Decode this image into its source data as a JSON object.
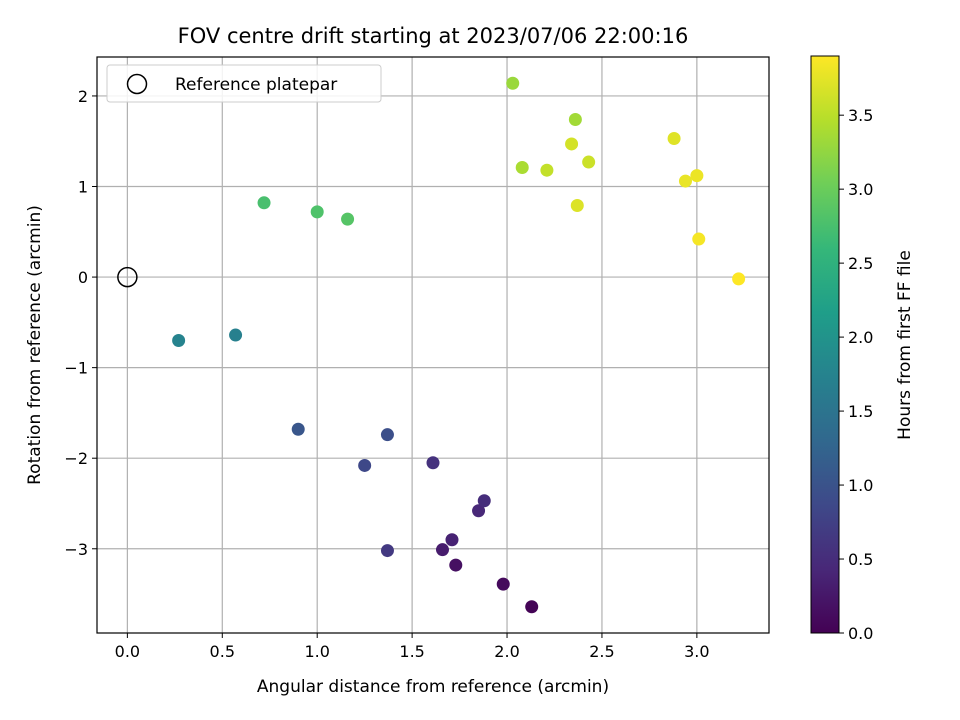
{
  "chart_data": {
    "type": "scatter",
    "title": "FOV centre drift starting at 2023/07/06 22:00:16",
    "xlabel": "Angular distance from reference (arcmin)",
    "ylabel": "Rotation from reference (arcmin)",
    "xlim": [
      -0.16,
      3.38
    ],
    "ylim": [
      -3.93,
      2.43
    ],
    "xticks": [
      0.0,
      0.5,
      1.0,
      1.5,
      2.0,
      2.5,
      3.0
    ],
    "xtick_labels": [
      "0.0",
      "0.5",
      "1.0",
      "1.5",
      "2.0",
      "2.5",
      "3.0"
    ],
    "yticks": [
      -3,
      -2,
      -1,
      0,
      1,
      2
    ],
    "ytick_labels": [
      "−3",
      "−2",
      "−1",
      "0",
      "1",
      "2"
    ],
    "grid": true,
    "legend": {
      "position": "top-left",
      "entries": [
        "Reference platepar"
      ]
    },
    "reference_point": {
      "x": 0.0,
      "y": 0.0
    },
    "colorbar": {
      "label": "Hours from first FF file",
      "range": [
        0.0,
        3.9
      ],
      "ticks": [
        0.0,
        0.5,
        1.0,
        1.5,
        2.0,
        2.5,
        3.0,
        3.5
      ],
      "tick_labels": [
        "0.0",
        "0.5",
        "1.0",
        "1.5",
        "2.0",
        "2.5",
        "3.0",
        "3.5"
      ],
      "colormap": "viridis",
      "stops": [
        "#440154",
        "#482878",
        "#3e4989",
        "#31688e",
        "#26828e",
        "#1f9e89",
        "#35b779",
        "#6ece58",
        "#b5de2b",
        "#fde725"
      ]
    },
    "points": [
      {
        "x": 2.13,
        "y": -3.64,
        "hours": 0.03
      },
      {
        "x": 1.98,
        "y": -3.39,
        "hours": 0.1
      },
      {
        "x": 1.73,
        "y": -3.18,
        "hours": 0.17
      },
      {
        "x": 1.66,
        "y": -3.01,
        "hours": 0.3
      },
      {
        "x": 1.71,
        "y": -2.9,
        "hours": 0.37
      },
      {
        "x": 1.85,
        "y": -2.58,
        "hours": 0.43
      },
      {
        "x": 1.88,
        "y": -2.47,
        "hours": 0.5
      },
      {
        "x": 1.61,
        "y": -2.05,
        "hours": 0.57
      },
      {
        "x": 1.37,
        "y": -3.02,
        "hours": 0.65
      },
      {
        "x": 1.25,
        "y": -2.08,
        "hours": 0.85
      },
      {
        "x": 1.37,
        "y": -1.74,
        "hours": 0.95
      },
      {
        "x": 0.9,
        "y": -1.68,
        "hours": 1.05
      },
      {
        "x": 0.57,
        "y": -0.64,
        "hours": 1.7
      },
      {
        "x": 0.27,
        "y": -0.7,
        "hours": 1.75
      },
      {
        "x": 0.72,
        "y": 0.82,
        "hours": 2.75
      },
      {
        "x": 1.0,
        "y": 0.72,
        "hours": 2.8
      },
      {
        "x": 1.16,
        "y": 0.64,
        "hours": 2.85
      },
      {
        "x": 2.03,
        "y": 2.14,
        "hours": 3.3
      },
      {
        "x": 2.36,
        "y": 1.74,
        "hours": 3.35
      },
      {
        "x": 2.08,
        "y": 1.21,
        "hours": 3.4
      },
      {
        "x": 2.21,
        "y": 1.18,
        "hours": 3.55
      },
      {
        "x": 2.43,
        "y": 1.27,
        "hours": 3.6
      },
      {
        "x": 2.34,
        "y": 1.47,
        "hours": 3.65
      },
      {
        "x": 2.37,
        "y": 0.79,
        "hours": 3.7
      },
      {
        "x": 2.88,
        "y": 1.53,
        "hours": 3.72
      },
      {
        "x": 2.94,
        "y": 1.06,
        "hours": 3.78
      },
      {
        "x": 3.0,
        "y": 1.12,
        "hours": 3.8
      },
      {
        "x": 3.01,
        "y": 0.42,
        "hours": 3.85
      },
      {
        "x": 3.22,
        "y": -0.02,
        "hours": 3.9
      }
    ]
  }
}
